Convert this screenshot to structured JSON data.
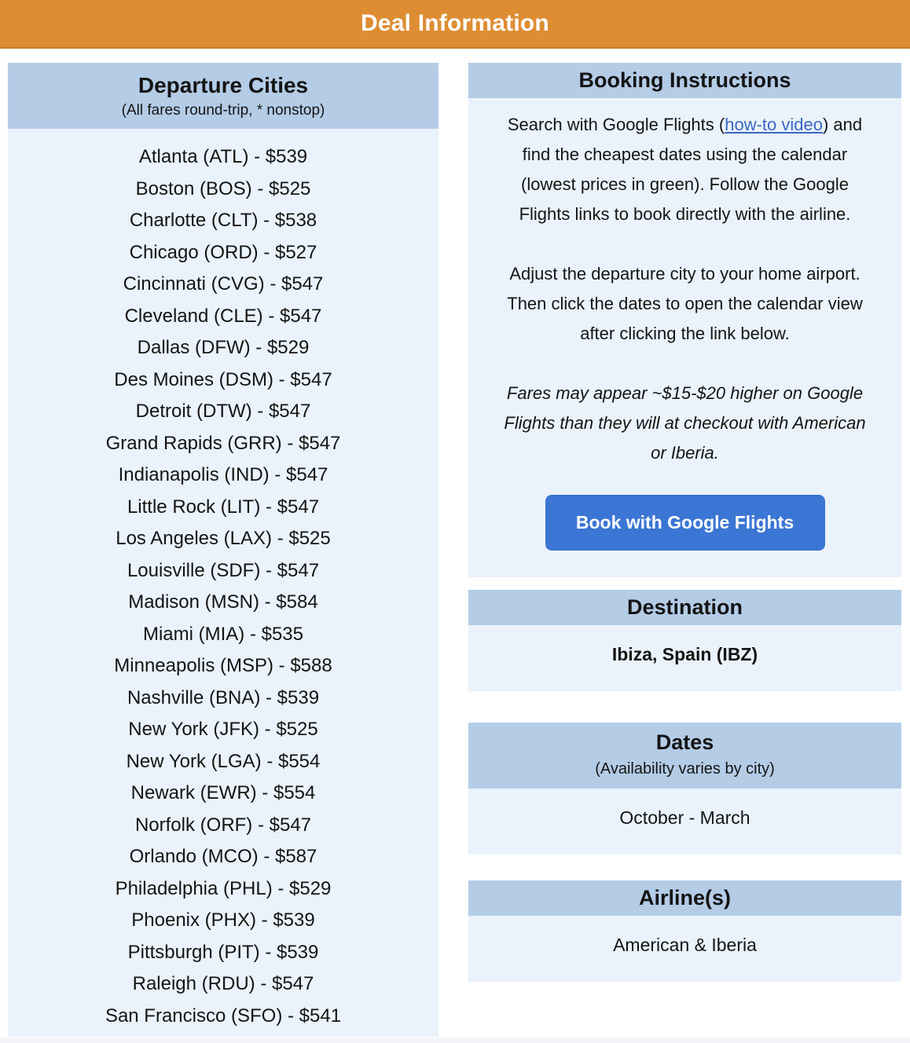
{
  "banner": {
    "title": "Deal Information"
  },
  "colors": {
    "banner_orange": "#de8d33",
    "banner_border": "#c9802a",
    "panel_header_blue": "#b4cce6",
    "panel_body_blue": "#eaf2fb",
    "button_blue": "#3b76d4",
    "link_blue": "#3a67c2",
    "button_text": "#ffffff",
    "text": "#141414"
  },
  "departure_cities": {
    "title": "Departure Cities",
    "subtitle": "(All fares round-trip, * nonstop)",
    "items": [
      "Atlanta (ATL) - $539",
      "Boston (BOS) - $525",
      "Charlotte (CLT) - $538",
      "Chicago (ORD) - $527",
      "Cincinnati (CVG) - $547",
      "Cleveland (CLE) - $547",
      "Dallas (DFW) - $529",
      "Des Moines (DSM) - $547",
      "Detroit (DTW) - $547",
      "Grand Rapids (GRR) - $547",
      "Indianapolis (IND) - $547",
      "Little Rock (LIT) - $547",
      "Los Angeles (LAX) - $525",
      "Louisville (SDF) - $547",
      "Madison (MSN) - $584",
      "Miami (MIA) - $535",
      "Minneapolis (MSP) - $588",
      "Nashville (BNA) - $539",
      "New York (JFK) - $525",
      "New York (LGA) - $554",
      "Newark (EWR) - $554",
      "Norfolk (ORF) - $547",
      "Orlando (MCO) - $587",
      "Philadelphia (PHL) - $529",
      "Phoenix (PHX) - $539",
      "Pittsburgh (PIT) - $539",
      "Raleigh (RDU) - $547",
      "San Francisco (SFO) - $541"
    ]
  },
  "booking": {
    "title": "Booking Instructions",
    "p1_before_link": "Search with Google Flights (",
    "link_text": "how-to video",
    "p1_after_link": ") and find the cheapest dates using the calendar (lowest prices in green). Follow the Google Flights links to book directly with the airline.",
    "p2": "Adjust the departure city to your home airport. Then click the dates to open the calendar view after clicking the link below.",
    "note": "Fares may appear ~$15-$20 higher on Google Flights than they will at checkout with American or Iberia.",
    "button_label": "Book with Google Flights"
  },
  "destination": {
    "title": "Destination",
    "value": "Ibiza, Spain (IBZ)"
  },
  "dates": {
    "title": "Dates",
    "subtitle": "(Availability varies by city)",
    "value": "October - March"
  },
  "airlines": {
    "title": "Airline(s)",
    "value": "American & Iberia"
  }
}
